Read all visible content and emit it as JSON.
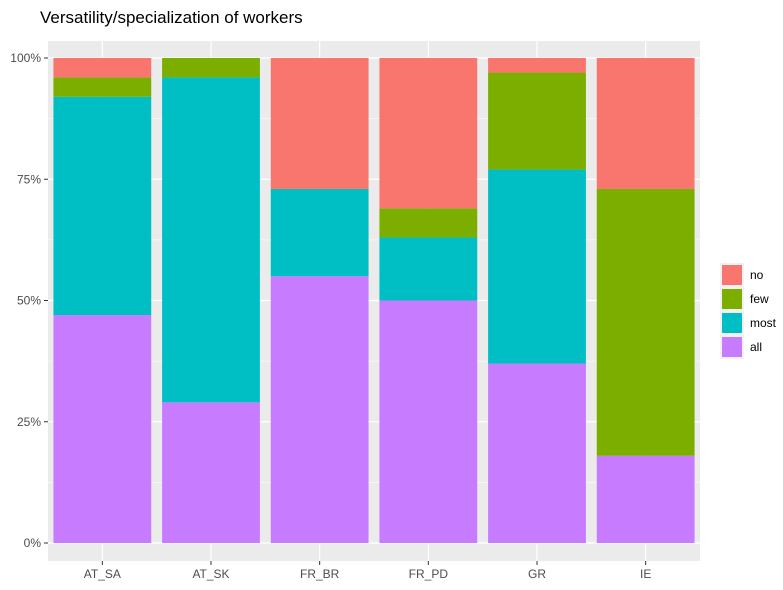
{
  "chart_data": {
    "type": "bar",
    "stacked": true,
    "normalized": true,
    "title": "Versatility/specialization of workers",
    "xlabel": "",
    "ylabel": "",
    "ylim": [
      0,
      1
    ],
    "yticks": [
      0,
      0.25,
      0.5,
      0.75,
      1.0
    ],
    "ytick_labels": [
      "0%",
      "25%",
      "50%",
      "75%",
      "100%"
    ],
    "categories": [
      "AT_SA",
      "AT_SK",
      "FR_BR",
      "FR_PD",
      "GR",
      "IE"
    ],
    "stack_order_bottom_to_top": [
      "all",
      "most",
      "few",
      "no"
    ],
    "series": [
      {
        "name": "all",
        "color": "#C77CFF",
        "values": [
          0.47,
          0.29,
          0.55,
          0.5,
          0.37,
          0.18
        ]
      },
      {
        "name": "most",
        "color": "#00BFC4",
        "values": [
          0.45,
          0.67,
          0.18,
          0.13,
          0.4,
          0.0
        ]
      },
      {
        "name": "few",
        "color": "#7CAE00",
        "values": [
          0.04,
          0.04,
          0.0,
          0.06,
          0.2,
          0.55
        ]
      },
      {
        "name": "no",
        "color": "#F8766D",
        "values": [
          0.04,
          0.0,
          0.27,
          0.31,
          0.03,
          0.27
        ]
      }
    ],
    "legend": {
      "position": "right",
      "entries": [
        "no",
        "few",
        "most",
        "all"
      ]
    },
    "grid": true,
    "panel_background": "#EBEBEB",
    "grid_color": "#FFFFFF"
  }
}
